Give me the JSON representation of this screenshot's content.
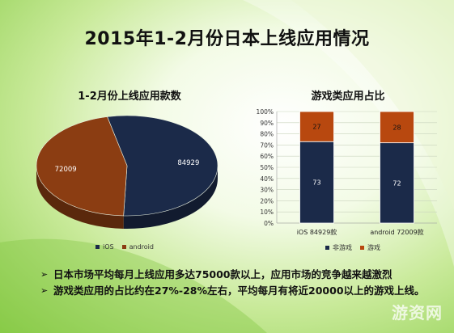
{
  "page": {
    "title": "2015年1-2月份日本上线应用情况",
    "bullets": [
      "日本市场平均每月上线应用多达75000款以上，应用市场的竞争越来越激烈",
      "游戏类应用的占比约在27%-28%左右，平均每月有将近20000以上的游戏上线。"
    ],
    "watermark": "游资网"
  },
  "chart_data": [
    {
      "type": "pie",
      "title": "1-2月份上线应用款数",
      "categories": [
        "iOS",
        "android"
      ],
      "values": [
        84929,
        72009
      ],
      "colors": [
        "#1b2a49",
        "#8b3d12"
      ],
      "legend": "bottom"
    },
    {
      "type": "bar",
      "title": "游戏类应用占比",
      "stacked": true,
      "categories": [
        "iOS 84929款",
        "android 72009款"
      ],
      "series": [
        {
          "name": "非游戏",
          "values": [
            73,
            72
          ],
          "color": "#1b2a49"
        },
        {
          "name": "游戏",
          "values": [
            27,
            28
          ],
          "color": "#b8480f"
        }
      ],
      "yticks": [
        "0%",
        "10%",
        "20%",
        "30%",
        "40%",
        "50%",
        "60%",
        "70%",
        "80%",
        "90%",
        "100%"
      ],
      "ylim": [
        0,
        100
      ],
      "grid": true,
      "legend": "bottom"
    }
  ]
}
